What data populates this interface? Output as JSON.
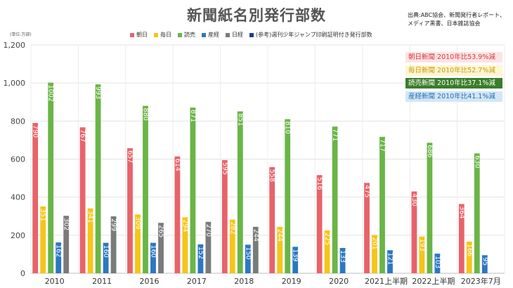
{
  "header": {
    "title": "新聞紙名別発行部数",
    "source_lines": [
      "出典:ABC協会、新聞発行者レポート、",
      "メディア黒書、日本雑誌協会"
    ],
    "unit": "(単位:万部)"
  },
  "notes": [
    {
      "text": "朝日新聞 2010年比53.9%減",
      "bg": "#fde4e4",
      "fg": "#d9383f"
    },
    {
      "text": "毎日新聞 2010年比52.7%減",
      "bg": "#fff6d1",
      "fg": "#c99a08"
    },
    {
      "text": "読売新聞 2010年比37.1%減",
      "bg": "#3b7d2b",
      "fg": "#ffffff"
    },
    {
      "text": "産経新聞 2010年比41.1%減",
      "bg": "#d4e6f5",
      "fg": "#1f6fb8"
    }
  ],
  "chart_data": {
    "type": "bar",
    "categories": [
      "2010",
      "2011",
      "2016",
      "2017",
      "2018",
      "2019",
      "2020",
      "2021上半期",
      "2022上半期",
      "2023年7月"
    ],
    "series": [
      {
        "name": "朝日",
        "color": "#e8636a",
        "values": [
          790,
          767,
          657,
          614,
          595,
          558,
          516,
          475,
          430,
          364
        ]
      },
      {
        "name": "毎日",
        "color": "#f5c518",
        "values": [
          351,
          341,
          309,
          294,
          282,
          244,
          225,
          201,
          193,
          166
        ]
      },
      {
        "name": "読売",
        "color": "#6ab547",
        "values": [
          1002,
          993,
          880,
          871,
          851,
          810,
          771,
          717,
          686,
          630
        ]
      },
      {
        "name": "産経",
        "color": "#2b78c2",
        "values": [
          162,
          160,
          160,
          152,
          150,
          139,
          133,
          121,
          103,
          95
        ]
      },
      {
        "name": "日経",
        "color": "#7a7a7a",
        "values": [
          302,
          299,
          265,
          270,
          244,
          null,
          null,
          null,
          null,
          null
        ]
      },
      {
        "name": "(参考)週刊少年ジャンプ印刷証明付き発行部数",
        "color": "#1f3f8a",
        "values": [
          null,
          null,
          null,
          null,
          null,
          null,
          null,
          null,
          null,
          null
        ]
      }
    ],
    "ylim": [
      0,
      1200
    ],
    "yticks": [
      0,
      200,
      400,
      600,
      800,
      1000,
      1200
    ],
    "ytick_labels": [
      "0",
      "200",
      "400",
      "600",
      "800",
      "1,000",
      "1,200"
    ],
    "grid": true,
    "legend": "top"
  }
}
